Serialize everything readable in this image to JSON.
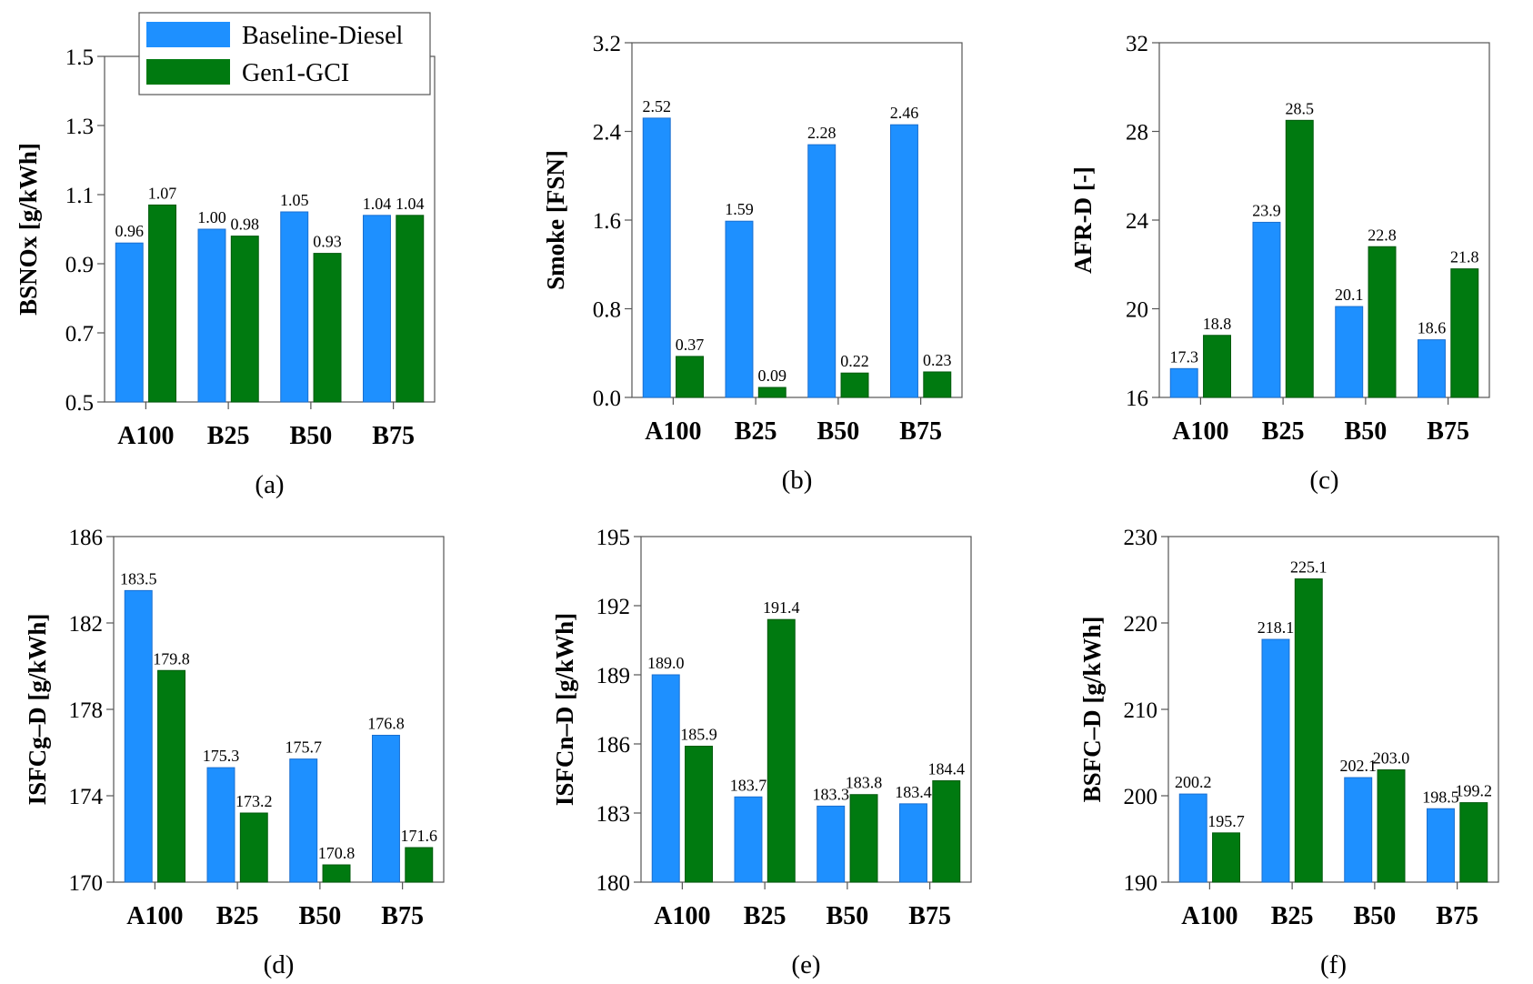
{
  "legend": {
    "entries": [
      {
        "label": "Baseline-Diesel",
        "color": "#1e90ff"
      },
      {
        "label": "Gen1-GCI",
        "color": "#007a10"
      }
    ]
  },
  "chart_data": [
    {
      "type": "bar",
      "panel": "(a)",
      "ylabel": "BSNOx [g/kWh]",
      "categories": [
        "A100",
        "B25",
        "B50",
        "B75"
      ],
      "ylim": [
        0.5,
        1.5
      ],
      "yticks": [
        "0.5",
        "0.7",
        "0.9",
        "1.1",
        "1.3",
        "1.5"
      ],
      "series": [
        {
          "name": "Baseline-Diesel",
          "values": [
            0.96,
            1.0,
            1.05,
            1.04
          ],
          "labels": [
            "0.96",
            "1.00",
            "1.05",
            "1.04"
          ]
        },
        {
          "name": "Gen1-GCI",
          "values": [
            1.07,
            0.98,
            0.93,
            1.04
          ],
          "labels": [
            "1.07",
            "0.98",
            "0.93",
            "1.04"
          ]
        }
      ],
      "legend_position": "top-left"
    },
    {
      "type": "bar",
      "panel": "(b)",
      "ylabel": "Smoke [FSN]",
      "categories": [
        "A100",
        "B25",
        "B50",
        "B75"
      ],
      "ylim": [
        0.0,
        3.2
      ],
      "yticks": [
        "0.0",
        "0.8",
        "1.6",
        "2.4",
        "3.2"
      ],
      "series": [
        {
          "name": "Baseline-Diesel",
          "values": [
            2.52,
            1.59,
            2.28,
            2.46
          ],
          "labels": [
            "2.52",
            "1.59",
            "2.28",
            "2.46"
          ]
        },
        {
          "name": "Gen1-GCI",
          "values": [
            0.37,
            0.09,
            0.22,
            0.23
          ],
          "labels": [
            "0.37",
            "0.09",
            "0.22",
            "0.23"
          ]
        }
      ]
    },
    {
      "type": "bar",
      "panel": "(c)",
      "ylabel": "AFR-D [-]",
      "categories": [
        "A100",
        "B25",
        "B50",
        "B75"
      ],
      "ylim": [
        16,
        32
      ],
      "yticks": [
        "16",
        "20",
        "24",
        "28",
        "32"
      ],
      "series": [
        {
          "name": "Baseline-Diesel",
          "values": [
            17.3,
            23.9,
            20.1,
            18.6
          ],
          "labels": [
            "17.3",
            "23.9",
            "20.1",
            "18.6"
          ]
        },
        {
          "name": "Gen1-GCI",
          "values": [
            18.8,
            28.5,
            22.8,
            21.8
          ],
          "labels": [
            "18.8",
            "28.5",
            "22.8",
            "21.8"
          ]
        }
      ]
    },
    {
      "type": "bar",
      "panel": "(d)",
      "ylabel": "ISFCg–D [g/kWh]",
      "categories": [
        "A100",
        "B25",
        "B50",
        "B75"
      ],
      "ylim": [
        170,
        186
      ],
      "yticks": [
        "170",
        "174",
        "178",
        "182",
        "186"
      ],
      "series": [
        {
          "name": "Baseline-Diesel",
          "values": [
            183.5,
            175.3,
            175.7,
            176.8
          ],
          "labels": [
            "183.5",
            "175.3",
            "175.7",
            "176.8"
          ]
        },
        {
          "name": "Gen1-GCI",
          "values": [
            179.8,
            173.2,
            170.8,
            171.6
          ],
          "labels": [
            "179.8",
            "173.2",
            "170.8",
            "171.6"
          ]
        }
      ]
    },
    {
      "type": "bar",
      "panel": "(e)",
      "ylabel": "ISFCn–D [g/kWh]",
      "categories": [
        "A100",
        "B25",
        "B50",
        "B75"
      ],
      "ylim": [
        180,
        195
      ],
      "yticks": [
        "180",
        "183",
        "186",
        "189",
        "192",
        "195"
      ],
      "series": [
        {
          "name": "Baseline-Diesel",
          "values": [
            189.0,
            183.7,
            183.3,
            183.4
          ],
          "labels": [
            "189.0",
            "183.7",
            "183.3",
            "183.4"
          ]
        },
        {
          "name": "Gen1-GCI",
          "values": [
            185.9,
            191.4,
            183.8,
            184.4
          ],
          "labels": [
            "185.9",
            "191.4",
            "183.8",
            "184.4"
          ]
        }
      ]
    },
    {
      "type": "bar",
      "panel": "(f)",
      "ylabel": "BSFC–D [g/kWh]",
      "categories": [
        "A100",
        "B25",
        "B50",
        "B75"
      ],
      "ylim": [
        190,
        230
      ],
      "yticks": [
        "190",
        "200",
        "210",
        "220",
        "230"
      ],
      "series": [
        {
          "name": "Baseline-Diesel",
          "values": [
            200.2,
            218.1,
            202.1,
            198.5
          ],
          "labels": [
            "200.2",
            "218.1",
            "202.1",
            "198.5"
          ]
        },
        {
          "name": "Gen1-GCI",
          "values": [
            195.7,
            225.1,
            203.0,
            199.2
          ],
          "labels": [
            "195.7",
            "225.1",
            "203.0",
            "199.2"
          ]
        }
      ]
    }
  ]
}
